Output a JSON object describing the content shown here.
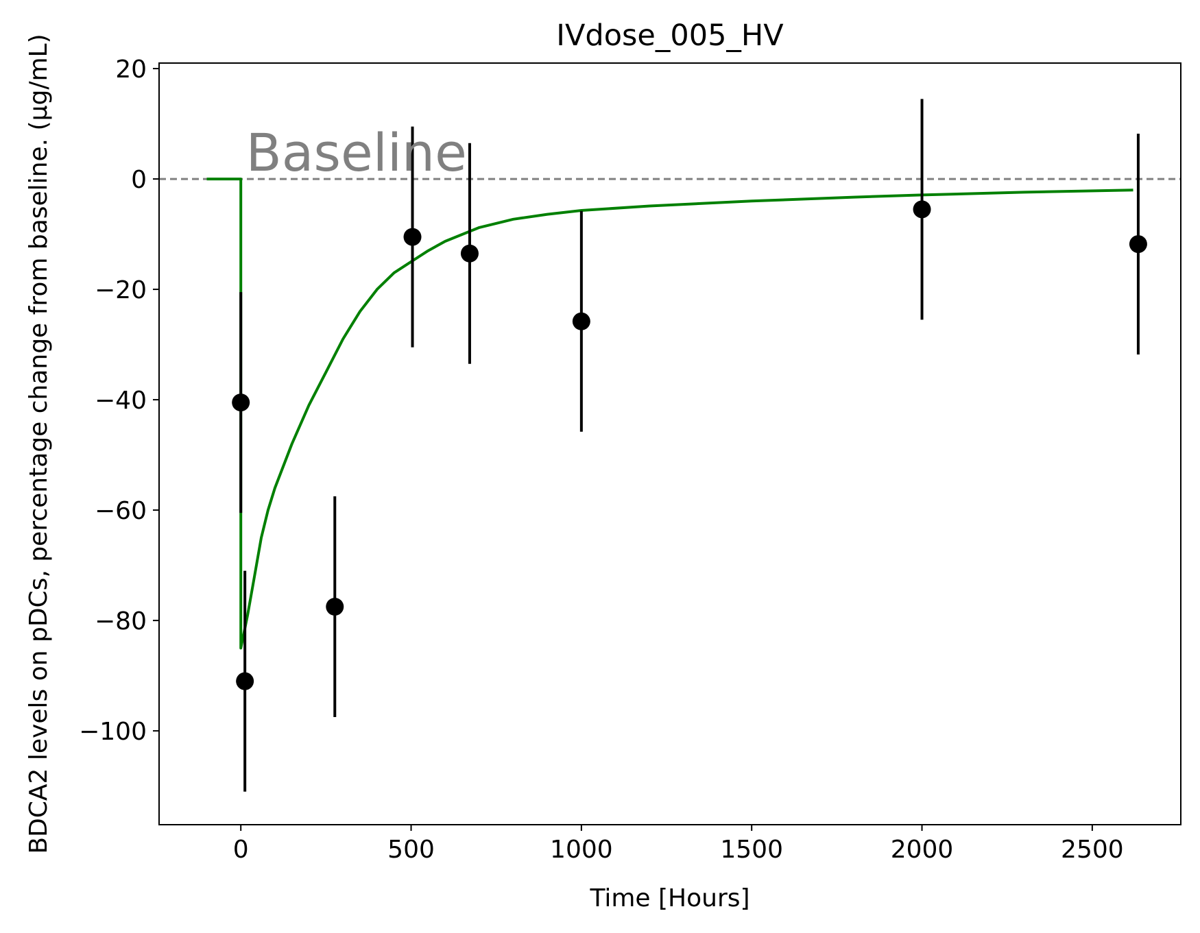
{
  "chart_data": {
    "type": "line",
    "title": "IVdose_005_HV",
    "xlabel": "Time [Hours]",
    "ylabel": "BDCA2 levels on pDCs, percentage change from baseline. (µg/mL)",
    "xlim": [
      -240,
      2760
    ],
    "ylim": [
      -117,
      21
    ],
    "xticks": [
      0,
      500,
      1000,
      1500,
      2000,
      2500
    ],
    "yticks": [
      -100,
      -80,
      -60,
      -40,
      -20,
      0,
      20
    ],
    "xtick_labels": [
      "0",
      "500",
      "1000",
      "1500",
      "2000",
      "2500"
    ],
    "ytick_labels": [
      "−100",
      "−80",
      "−60",
      "−40",
      "−20",
      "0",
      "20"
    ],
    "grid": false,
    "reference_line": {
      "y": 0,
      "label": "Baseline",
      "color": "#808080",
      "style": "dashed"
    },
    "series": [
      {
        "kind": "model",
        "color": "#008000",
        "points": [
          [
            -100,
            0
          ],
          [
            0,
            0
          ],
          [
            0,
            -85
          ],
          [
            10,
            -82
          ],
          [
            20,
            -79
          ],
          [
            40,
            -72
          ],
          [
            60,
            -65
          ],
          [
            80,
            -60
          ],
          [
            100,
            -56
          ],
          [
            150,
            -48
          ],
          [
            200,
            -41
          ],
          [
            250,
            -35
          ],
          [
            300,
            -29
          ],
          [
            350,
            -24
          ],
          [
            400,
            -20
          ],
          [
            450,
            -17
          ],
          [
            500,
            -15
          ],
          [
            550,
            -13
          ],
          [
            600,
            -11.3
          ],
          [
            700,
            -8.8
          ],
          [
            800,
            -7.3
          ],
          [
            900,
            -6.4
          ],
          [
            1000,
            -5.7
          ],
          [
            1200,
            -4.9
          ],
          [
            1500,
            -4.0
          ],
          [
            1800,
            -3.3
          ],
          [
            2000,
            -2.9
          ],
          [
            2300,
            -2.4
          ],
          [
            2620,
            -2.0
          ]
        ]
      },
      {
        "kind": "observed",
        "color": "#000000",
        "points": [
          {
            "x": 0,
            "y": -40.5,
            "err": 20
          },
          {
            "x": 12,
            "y": -91,
            "err": 20
          },
          {
            "x": 276,
            "y": -77.5,
            "err": 20
          },
          {
            "x": 504,
            "y": -10.5,
            "err": 20
          },
          {
            "x": 672,
            "y": -13.5,
            "err": 20
          },
          {
            "x": 1000,
            "y": -25.8,
            "err": 20
          },
          {
            "x": 2000,
            "y": -5.5,
            "err": 20
          },
          {
            "x": 2635,
            "y": -11.8,
            "err": 20
          }
        ]
      }
    ]
  }
}
